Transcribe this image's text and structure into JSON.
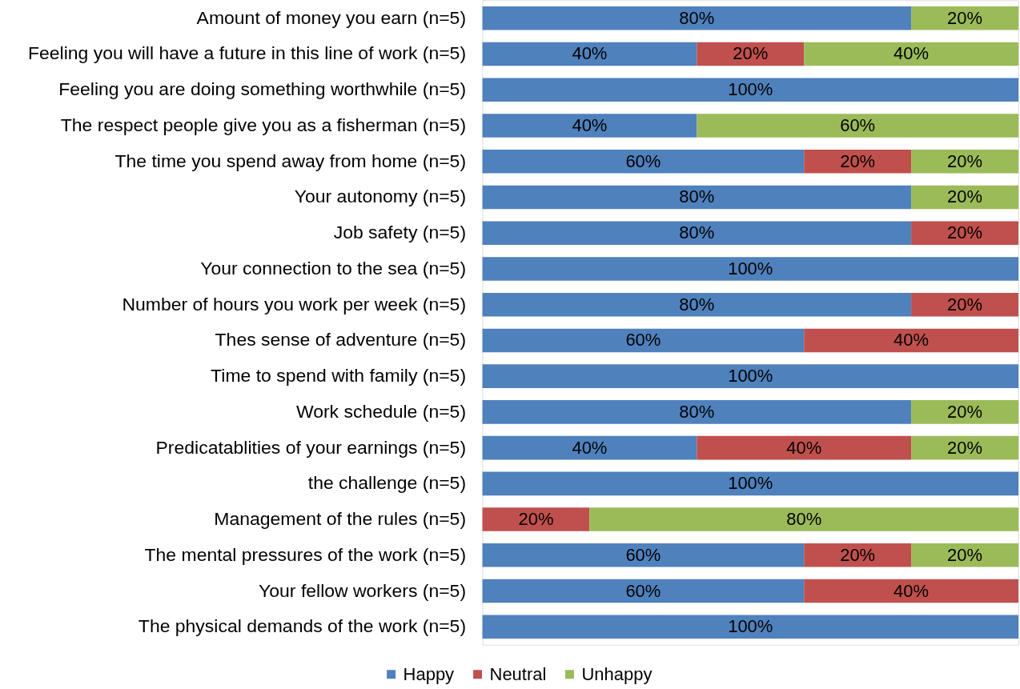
{
  "chart_data": {
    "type": "bar",
    "orientation": "horizontal",
    "stacked": true,
    "legend": "bottom",
    "tick_labels": "y",
    "categories": [
      "Amount of money you earn (n=5)",
      "Feeling you will have a future in this line of work (n=5)",
      "Feeling you are doing something worthwhile (n=5)",
      "The respect people give you as a fisherman (n=5)",
      "The time you spend away from home (n=5)",
      "Your autonomy (n=5)",
      "Job safety (n=5)",
      "Your connection to the sea (n=5)",
      "Number of hours you work per week (n=5)",
      "Thes sense of adventure (n=5)",
      "Time to spend with family (n=5)",
      "Work schedule (n=5)",
      "Predicatablities of your earnings (n=5)",
      "the challenge (n=5)",
      "Management of the rules (n=5)",
      "The mental pressures of the work (n=5)",
      "Your fellow workers (n=5)",
      "The physical demands of the work (n=5)"
    ],
    "series": [
      {
        "name": "Happy",
        "color": "#4f81bd",
        "values": [
          80,
          40,
          100,
          40,
          60,
          80,
          80,
          100,
          80,
          60,
          100,
          80,
          40,
          100,
          null,
          60,
          60,
          100
        ],
        "value_labels": [
          "80%",
          "40%",
          "100%",
          "40%",
          "60%",
          "80%",
          "80%",
          "100%",
          "80%",
          "60%",
          "100%",
          "80%",
          "40%",
          "100%",
          null,
          "60%",
          "60%",
          "100%"
        ]
      },
      {
        "name": "Neutral",
        "color": "#c0504d",
        "values": [
          null,
          20,
          null,
          null,
          20,
          null,
          20,
          null,
          20,
          40,
          null,
          null,
          40,
          null,
          20,
          20,
          40,
          null
        ],
        "value_labels": [
          null,
          "20%",
          null,
          null,
          "20%",
          null,
          "20%",
          null,
          "20%",
          "40%",
          null,
          null,
          "40%",
          null,
          "20%",
          "20%",
          "40%",
          null
        ]
      },
      {
        "name": "Unhappy",
        "color": "#9bbb59",
        "values": [
          20,
          40,
          null,
          60,
          20,
          20,
          null,
          null,
          null,
          null,
          null,
          20,
          20,
          null,
          80,
          20,
          null,
          null
        ],
        "value_labels": [
          "20%",
          "40%",
          null,
          "60%",
          "20%",
          "20%",
          null,
          null,
          null,
          null,
          null,
          "20%",
          "20%",
          null,
          "80%",
          "20%",
          null,
          null
        ]
      }
    ]
  }
}
